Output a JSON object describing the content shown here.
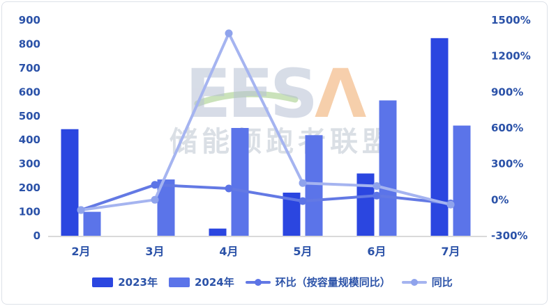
{
  "watermark": {
    "latin": "EES",
    "latin_accent": "Λ",
    "cn": "储能领跑者联盟"
  },
  "colors": {
    "bar_2023": "#2b46e0",
    "bar_2024": "#5b74e9",
    "line_huanbi": "#6379e4",
    "line_huanbi_dot": "#5c74e6",
    "line_tongbi": "#a5b4f0",
    "line_tongbi_dot": "#8fa3ec",
    "axis_text": "#2b52a8",
    "baseline": "#d9d9d9",
    "watermark_gray": "#b7c1d4",
    "watermark_orange": "#f0a868",
    "watermark_green": "#a8d08d"
  },
  "chart_data": {
    "type": "bar",
    "subtype": "combo-bar-line-dual-axis",
    "title": "",
    "xlabel": "",
    "ylabel_left": "",
    "ylabel_right": "",
    "grid": false,
    "legend_position": "bottom",
    "categories": [
      "2月",
      "3月",
      "4月",
      "5月",
      "6月",
      "7月"
    ],
    "left_axis": {
      "min": 0,
      "max": 900,
      "step": 100,
      "ticks": [
        "0",
        "100",
        "200",
        "300",
        "400",
        "500",
        "600",
        "700",
        "800",
        "900"
      ]
    },
    "right_axis": {
      "min": -300,
      "max": 1500,
      "step": 300,
      "ticks": [
        "-300%",
        "0%",
        "300%",
        "600%",
        "900%",
        "1200%",
        "1500%"
      ],
      "tick_values": [
        -300,
        0,
        300,
        600,
        900,
        1200,
        1500
      ]
    },
    "bar_series": [
      {
        "name": "2023年",
        "axis": "left",
        "color": "#2b46e0",
        "values": [
          445,
          0,
          30,
          180,
          260,
          825
        ]
      },
      {
        "name": "2024年",
        "axis": "left",
        "color": "#5b74e9",
        "values": [
          100,
          235,
          450,
          420,
          565,
          460
        ]
      }
    ],
    "line_series": [
      {
        "name": "环比（按容量规模同比）",
        "axis": "right",
        "color": "#6379e4",
        "dot_color": "#5c74e6",
        "values_pct": [
          -85,
          125,
          95,
          -10,
          35,
          -30
        ]
      },
      {
        "name": "同比",
        "axis": "right",
        "color": "#a5b4f0",
        "dot_color": "#8fa3ec",
        "values_pct": [
          -85,
          0,
          1390,
          140,
          115,
          -40
        ]
      }
    ]
  }
}
